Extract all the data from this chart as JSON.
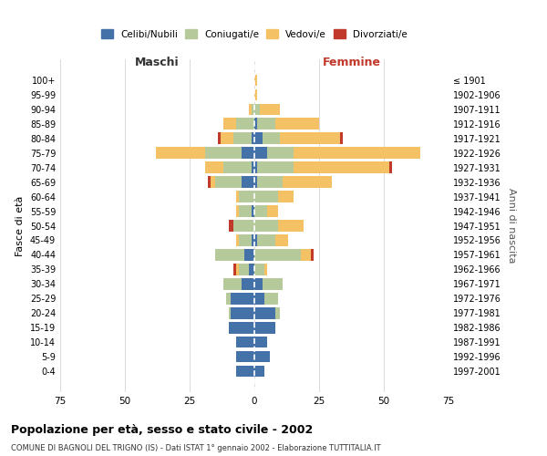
{
  "age_groups": [
    "0-4",
    "5-9",
    "10-14",
    "15-19",
    "20-24",
    "25-29",
    "30-34",
    "35-39",
    "40-44",
    "45-49",
    "50-54",
    "55-59",
    "60-64",
    "65-69",
    "70-74",
    "75-79",
    "80-84",
    "85-89",
    "90-94",
    "95-99",
    "100+"
  ],
  "birth_years": [
    "1997-2001",
    "1992-1996",
    "1987-1991",
    "1982-1986",
    "1977-1981",
    "1972-1976",
    "1967-1971",
    "1962-1966",
    "1957-1961",
    "1952-1956",
    "1947-1951",
    "1942-1946",
    "1937-1941",
    "1932-1936",
    "1927-1931",
    "1922-1926",
    "1917-1921",
    "1912-1916",
    "1907-1911",
    "1902-1906",
    "≤ 1901"
  ],
  "male_celibi": [
    7,
    7,
    7,
    10,
    9,
    9,
    5,
    2,
    4,
    1,
    0,
    1,
    0,
    5,
    1,
    5,
    1,
    0,
    0,
    0,
    0
  ],
  "male_coniugati": [
    0,
    0,
    0,
    0,
    1,
    2,
    7,
    4,
    11,
    5,
    8,
    5,
    6,
    10,
    11,
    14,
    7,
    7,
    1,
    0,
    0
  ],
  "male_vedovi": [
    0,
    0,
    0,
    0,
    0,
    0,
    0,
    1,
    0,
    1,
    0,
    1,
    1,
    2,
    7,
    19,
    5,
    5,
    1,
    0,
    0
  ],
  "male_divorziati": [
    0,
    0,
    0,
    0,
    0,
    0,
    0,
    1,
    0,
    0,
    2,
    0,
    0,
    1,
    0,
    0,
    1,
    0,
    0,
    0,
    0
  ],
  "female_celibi": [
    4,
    6,
    5,
    8,
    8,
    4,
    3,
    0,
    0,
    1,
    0,
    0,
    0,
    1,
    1,
    5,
    3,
    1,
    0,
    0,
    0
  ],
  "female_coniugati": [
    0,
    0,
    0,
    0,
    2,
    5,
    8,
    4,
    18,
    7,
    9,
    5,
    9,
    10,
    14,
    10,
    7,
    7,
    2,
    0,
    0
  ],
  "female_vedovi": [
    0,
    0,
    0,
    0,
    0,
    0,
    0,
    1,
    4,
    5,
    10,
    4,
    6,
    19,
    37,
    49,
    23,
    17,
    8,
    1,
    1
  ],
  "female_divorziati": [
    0,
    0,
    0,
    0,
    0,
    0,
    0,
    0,
    1,
    0,
    0,
    0,
    0,
    0,
    1,
    0,
    1,
    0,
    0,
    0,
    0
  ],
  "color_celibi": "#4472a8",
  "color_coniugati": "#b5c99a",
  "color_vedovi": "#f5c165",
  "color_divorziati": "#c0392b",
  "title": "Popolazione per età, sesso e stato civile - 2002",
  "subtitle": "COMUNE DI BAGNOLI DEL TRIGNO (IS) - Dati ISTAT 1° gennaio 2002 - Elaborazione TUTTITALIA.IT",
  "xlabel_left": "Maschi",
  "xlabel_right": "Femmine",
  "ylabel_left": "Fasce di età",
  "ylabel_right": "Anni di nascita",
  "xlim": 75,
  "background_color": "#ffffff",
  "grid_color": "#cccccc"
}
